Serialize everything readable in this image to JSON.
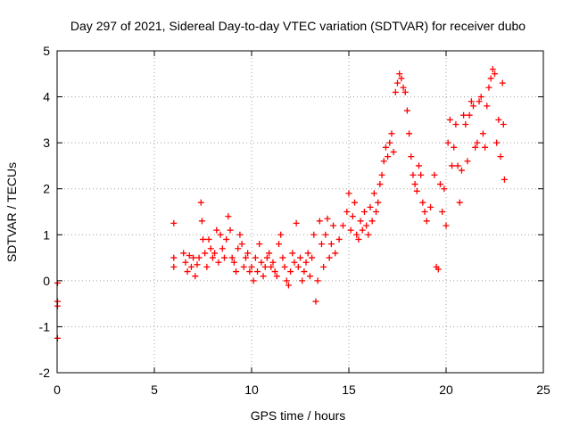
{
  "chart_data": {
    "type": "scatter",
    "title": "Day 297 of 2021, Sidereal Day-to-day VTEC variation (SDTVAR) for receiver dubo",
    "xlabel": "GPS time / hours",
    "ylabel": "SDTVAR / TECUs",
    "xlim": [
      0,
      25
    ],
    "ylim": [
      -2,
      5
    ],
    "x_ticks": [
      0,
      5,
      10,
      15,
      20,
      25
    ],
    "y_ticks": [
      -2,
      -1,
      0,
      1,
      2,
      3,
      4,
      5
    ],
    "grid": true,
    "marker": "+",
    "series_color": "#ff0000",
    "series": [
      {
        "name": "SDTVAR",
        "points": [
          [
            0.02,
            -0.05
          ],
          [
            0.02,
            -0.45
          ],
          [
            0.02,
            -0.55
          ],
          [
            0.02,
            -1.25
          ],
          [
            6.0,
            1.25
          ],
          [
            6.0,
            0.5
          ],
          [
            6.0,
            0.3
          ],
          [
            6.5,
            0.6
          ],
          [
            6.6,
            0.4
          ],
          [
            6.7,
            0.2
          ],
          [
            6.8,
            0.55
          ],
          [
            6.9,
            0.3
          ],
          [
            7.0,
            0.5
          ],
          [
            7.1,
            0.1
          ],
          [
            7.2,
            0.35
          ],
          [
            7.3,
            0.5
          ],
          [
            7.4,
            1.7
          ],
          [
            7.45,
            1.3
          ],
          [
            7.5,
            0.9
          ],
          [
            7.6,
            0.6
          ],
          [
            7.7,
            0.3
          ],
          [
            7.8,
            0.9
          ],
          [
            7.9,
            0.7
          ],
          [
            8.0,
            0.5
          ],
          [
            8.1,
            0.6
          ],
          [
            8.2,
            1.1
          ],
          [
            8.3,
            0.4
          ],
          [
            8.4,
            1.0
          ],
          [
            8.5,
            0.7
          ],
          [
            8.6,
            0.5
          ],
          [
            8.7,
            0.9
          ],
          [
            8.8,
            1.4
          ],
          [
            8.9,
            1.1
          ],
          [
            9.0,
            0.5
          ],
          [
            9.1,
            0.4
          ],
          [
            9.2,
            0.2
          ],
          [
            9.3,
            0.7
          ],
          [
            9.4,
            1.0
          ],
          [
            9.5,
            0.8
          ],
          [
            9.6,
            0.3
          ],
          [
            9.7,
            0.5
          ],
          [
            9.8,
            0.6
          ],
          [
            9.9,
            0.2
          ],
          [
            10.0,
            0.3
          ],
          [
            10.1,
            0.0
          ],
          [
            10.2,
            0.5
          ],
          [
            10.3,
            0.2
          ],
          [
            10.4,
            0.8
          ],
          [
            10.5,
            0.4
          ],
          [
            10.6,
            0.1
          ],
          [
            10.7,
            0.3
          ],
          [
            10.8,
            0.5
          ],
          [
            10.9,
            0.6
          ],
          [
            11.0,
            0.3
          ],
          [
            11.1,
            0.4
          ],
          [
            11.2,
            0.2
          ],
          [
            11.3,
            0.1
          ],
          [
            11.4,
            0.8
          ],
          [
            11.5,
            1.0
          ],
          [
            11.6,
            0.5
          ],
          [
            11.7,
            0.3
          ],
          [
            11.8,
            0.0
          ],
          [
            11.9,
            -0.1
          ],
          [
            12.0,
            0.2
          ],
          [
            12.1,
            0.6
          ],
          [
            12.2,
            0.4
          ],
          [
            12.3,
            1.25
          ],
          [
            12.4,
            0.3
          ],
          [
            12.5,
            0.5
          ],
          [
            12.6,
            0.0
          ],
          [
            12.7,
            0.2
          ],
          [
            12.8,
            0.4
          ],
          [
            12.9,
            0.6
          ],
          [
            13.0,
            0.1
          ],
          [
            13.1,
            0.5
          ],
          [
            13.2,
            1.0
          ],
          [
            13.3,
            -0.45
          ],
          [
            13.4,
            0.0
          ],
          [
            13.5,
            1.3
          ],
          [
            13.6,
            0.8
          ],
          [
            13.7,
            0.3
          ],
          [
            13.8,
            1.0
          ],
          [
            13.9,
            1.35
          ],
          [
            14.0,
            0.5
          ],
          [
            14.1,
            0.8
          ],
          [
            14.2,
            1.2
          ],
          [
            14.3,
            0.6
          ],
          [
            14.5,
            0.9
          ],
          [
            14.7,
            1.2
          ],
          [
            14.9,
            1.5
          ],
          [
            15.0,
            1.9
          ],
          [
            15.1,
            1.1
          ],
          [
            15.2,
            1.4
          ],
          [
            15.3,
            1.7
          ],
          [
            15.4,
            1.0
          ],
          [
            15.5,
            0.9
          ],
          [
            15.6,
            1.3
          ],
          [
            15.7,
            1.1
          ],
          [
            15.8,
            1.5
          ],
          [
            15.9,
            1.2
          ],
          [
            16.0,
            1.0
          ],
          [
            16.1,
            1.6
          ],
          [
            16.2,
            1.3
          ],
          [
            16.3,
            1.9
          ],
          [
            16.4,
            1.5
          ],
          [
            16.5,
            1.7
          ],
          [
            16.6,
            2.1
          ],
          [
            16.7,
            2.3
          ],
          [
            16.8,
            2.6
          ],
          [
            16.9,
            2.9
          ],
          [
            17.0,
            2.7
          ],
          [
            17.1,
            3.0
          ],
          [
            17.2,
            3.2
          ],
          [
            17.3,
            2.8
          ],
          [
            17.4,
            4.1
          ],
          [
            17.5,
            4.3
          ],
          [
            17.6,
            4.5
          ],
          [
            17.7,
            4.4
          ],
          [
            17.8,
            4.2
          ],
          [
            17.9,
            4.1
          ],
          [
            18.0,
            3.7
          ],
          [
            18.1,
            3.2
          ],
          [
            18.2,
            2.7
          ],
          [
            18.3,
            2.3
          ],
          [
            18.4,
            2.1
          ],
          [
            18.5,
            1.95
          ],
          [
            18.6,
            2.5
          ],
          [
            18.7,
            2.3
          ],
          [
            18.8,
            1.7
          ],
          [
            18.9,
            1.5
          ],
          [
            19.0,
            1.3
          ],
          [
            19.2,
            1.6
          ],
          [
            19.4,
            2.3
          ],
          [
            19.5,
            0.3
          ],
          [
            19.6,
            0.25
          ],
          [
            19.7,
            2.1
          ],
          [
            19.8,
            1.5
          ],
          [
            19.9,
            2.0
          ],
          [
            20.0,
            1.2
          ],
          [
            20.1,
            3.0
          ],
          [
            20.2,
            3.5
          ],
          [
            20.3,
            2.5
          ],
          [
            20.4,
            2.9
          ],
          [
            20.5,
            3.4
          ],
          [
            20.6,
            2.5
          ],
          [
            20.7,
            1.7
          ],
          [
            20.8,
            2.4
          ],
          [
            20.9,
            3.6
          ],
          [
            21.0,
            3.4
          ],
          [
            21.1,
            2.6
          ],
          [
            21.2,
            3.6
          ],
          [
            21.3,
            3.9
          ],
          [
            21.4,
            3.8
          ],
          [
            21.5,
            2.9
          ],
          [
            21.6,
            3.0
          ],
          [
            21.7,
            3.9
          ],
          [
            21.8,
            4.0
          ],
          [
            21.9,
            3.2
          ],
          [
            22.0,
            2.9
          ],
          [
            22.1,
            3.8
          ],
          [
            22.2,
            4.2
          ],
          [
            22.3,
            4.4
          ],
          [
            22.4,
            4.6
          ],
          [
            22.5,
            4.5
          ],
          [
            22.6,
            3.0
          ],
          [
            22.7,
            3.5
          ],
          [
            22.8,
            2.7
          ],
          [
            22.9,
            4.3
          ],
          [
            22.95,
            3.4
          ],
          [
            23.0,
            2.2
          ]
        ]
      }
    ]
  }
}
